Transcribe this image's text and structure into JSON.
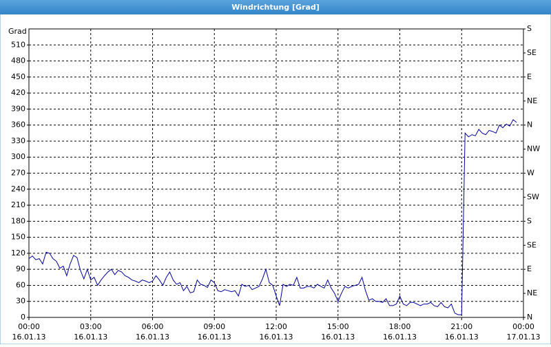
{
  "chart_data": {
    "type": "line",
    "title": "Windrichtung [Grad]",
    "ylabel": "Grad",
    "xlim": [
      0,
      1440
    ],
    "xticks": [
      {
        "value": 0,
        "label": "00:00"
      },
      {
        "value": 180,
        "label": "03:00"
      },
      {
        "value": 360,
        "label": "06:00"
      },
      {
        "value": 540,
        "label": "09:00"
      },
      {
        "value": 720,
        "label": "12:00"
      },
      {
        "value": 900,
        "label": "15:00"
      },
      {
        "value": 1080,
        "label": "18:00"
      },
      {
        "value": 1260,
        "label": "21:00"
      },
      {
        "value": 1440,
        "label": "00:00"
      }
    ],
    "xtick_dates": [
      "16.01.13",
      "16.01.13",
      "16.01.13",
      "16.01.13",
      "16.01.13",
      "16.01.13",
      "16.01.13",
      "16.01.13",
      "17.01.13"
    ],
    "ylim": [
      0,
      540
    ],
    "yticks": [
      0,
      30,
      60,
      90,
      120,
      150,
      180,
      210,
      240,
      270,
      300,
      330,
      360,
      390,
      420,
      450,
      480,
      510
    ],
    "y2lim": [
      0,
      540
    ],
    "y2ticks": [
      {
        "value": 0,
        "label": "N"
      },
      {
        "value": 45,
        "label": "NE"
      },
      {
        "value": 90,
        "label": "E"
      },
      {
        "value": 135,
        "label": "SE"
      },
      {
        "value": 180,
        "label": "S"
      },
      {
        "value": 225,
        "label": "SW"
      },
      {
        "value": 270,
        "label": "W"
      },
      {
        "value": 315,
        "label": "NW"
      },
      {
        "value": 360,
        "label": "N"
      },
      {
        "value": 405,
        "label": "NE"
      },
      {
        "value": 450,
        "label": "E"
      },
      {
        "value": 495,
        "label": "SE"
      },
      {
        "value": 540,
        "label": "S"
      }
    ],
    "grid": true,
    "x": [
      0,
      10,
      20,
      30,
      40,
      50,
      60,
      70,
      80,
      90,
      100,
      110,
      120,
      130,
      140,
      150,
      160,
      170,
      180,
      190,
      200,
      210,
      220,
      230,
      240,
      250,
      260,
      270,
      280,
      290,
      300,
      310,
      320,
      330,
      340,
      350,
      360,
      370,
      380,
      390,
      400,
      410,
      420,
      430,
      440,
      450,
      460,
      470,
      480,
      490,
      500,
      510,
      520,
      530,
      540,
      550,
      560,
      570,
      580,
      590,
      600,
      610,
      620,
      630,
      640,
      650,
      660,
      670,
      680,
      690,
      700,
      710,
      720,
      730,
      740,
      750,
      760,
      770,
      780,
      790,
      800,
      810,
      820,
      830,
      840,
      850,
      860,
      870,
      880,
      890,
      900,
      910,
      920,
      930,
      940,
      950,
      960,
      970,
      980,
      990,
      1000,
      1010,
      1020,
      1030,
      1040,
      1050,
      1060,
      1070,
      1080,
      1090,
      1100,
      1110,
      1120,
      1130,
      1140,
      1150,
      1160,
      1170,
      1180,
      1190,
      1200,
      1210,
      1220,
      1230,
      1240,
      1250,
      1260,
      1270,
      1280,
      1290,
      1300,
      1310,
      1320,
      1330,
      1340,
      1350,
      1360,
      1370,
      1380,
      1390,
      1400,
      1410,
      1420
    ],
    "series": [
      {
        "color": "#0000a0",
        "values": [
          110,
          115,
          108,
          110,
          100,
          122,
          120,
          110,
          105,
          92,
          96,
          78,
          100,
          116,
          112,
          88,
          72,
          90,
          70,
          75,
          60,
          70,
          78,
          85,
          90,
          80,
          88,
          85,
          78,
          75,
          70,
          68,
          65,
          70,
          68,
          65,
          68,
          78,
          70,
          60,
          75,
          85,
          70,
          62,
          65,
          50,
          58,
          46,
          48,
          70,
          62,
          60,
          56,
          70,
          65,
          50,
          48,
          52,
          50,
          48,
          50,
          40,
          62,
          58,
          60,
          52,
          55,
          58,
          72,
          90,
          65,
          60,
          40,
          22,
          62,
          58,
          62,
          60,
          75,
          55,
          55,
          58,
          58,
          55,
          62,
          58,
          55,
          70,
          55,
          45,
          30,
          45,
          58,
          55,
          58,
          60,
          62,
          75,
          50,
          32,
          35,
          30,
          30,
          28,
          35,
          22,
          22,
          25,
          40,
          25,
          22,
          28,
          28,
          25,
          22,
          25,
          25,
          28,
          22,
          20,
          28,
          20,
          18,
          25,
          8,
          5,
          5,
          345,
          338,
          342,
          340,
          352,
          345,
          342,
          350,
          348,
          345,
          360,
          355,
          362,
          358,
          370,
          365
        ]
      }
    ]
  }
}
